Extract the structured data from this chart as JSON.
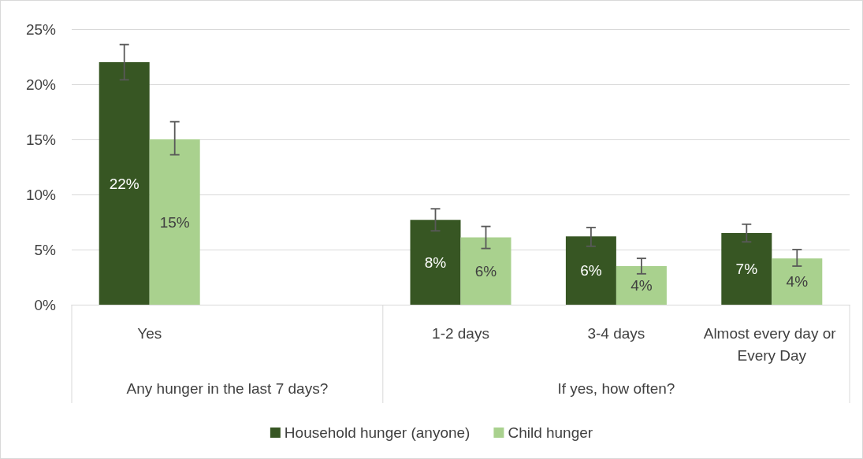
{
  "chart_data": {
    "type": "bar",
    "categories": [
      "Yes",
      null,
      "1-2 days",
      "3-4 days",
      "Almost every day or Every Day"
    ],
    "series": [
      {
        "name": "Household hunger (anyone)",
        "color": "#375623",
        "values": [
          22.0,
          null,
          7.7,
          6.2,
          6.5
        ],
        "value_labels": [
          "22%",
          null,
          "8%",
          "6%",
          "7%"
        ],
        "errors": [
          [
            20.4,
            23.6
          ],
          null,
          [
            6.7,
            8.7
          ],
          [
            5.3,
            7.0
          ],
          [
            5.7,
            7.3
          ]
        ]
      },
      {
        "name": "Child hunger",
        "color": "#a9d18e",
        "values": [
          15.0,
          null,
          6.1,
          3.5,
          4.2
        ],
        "value_labels": [
          "15%",
          null,
          "6%",
          "4%",
          "4%"
        ],
        "errors": [
          [
            13.6,
            16.6
          ],
          null,
          [
            5.1,
            7.1
          ],
          [
            2.8,
            4.2
          ],
          [
            3.5,
            5.0
          ]
        ]
      }
    ],
    "ylim": [
      0,
      25
    ],
    "yticks": [
      {
        "value": 0,
        "label": "0%"
      },
      {
        "value": 5,
        "label": "5%"
      },
      {
        "value": 10,
        "label": "10%"
      },
      {
        "value": 15,
        "label": "15%"
      },
      {
        "value": 20,
        "label": "20%"
      },
      {
        "value": 25,
        "label": "25%"
      }
    ],
    "annotations": [
      "Any hunger in the last 7 days?",
      "If yes, how often?"
    ],
    "grid": "y",
    "legend": "bottom"
  }
}
